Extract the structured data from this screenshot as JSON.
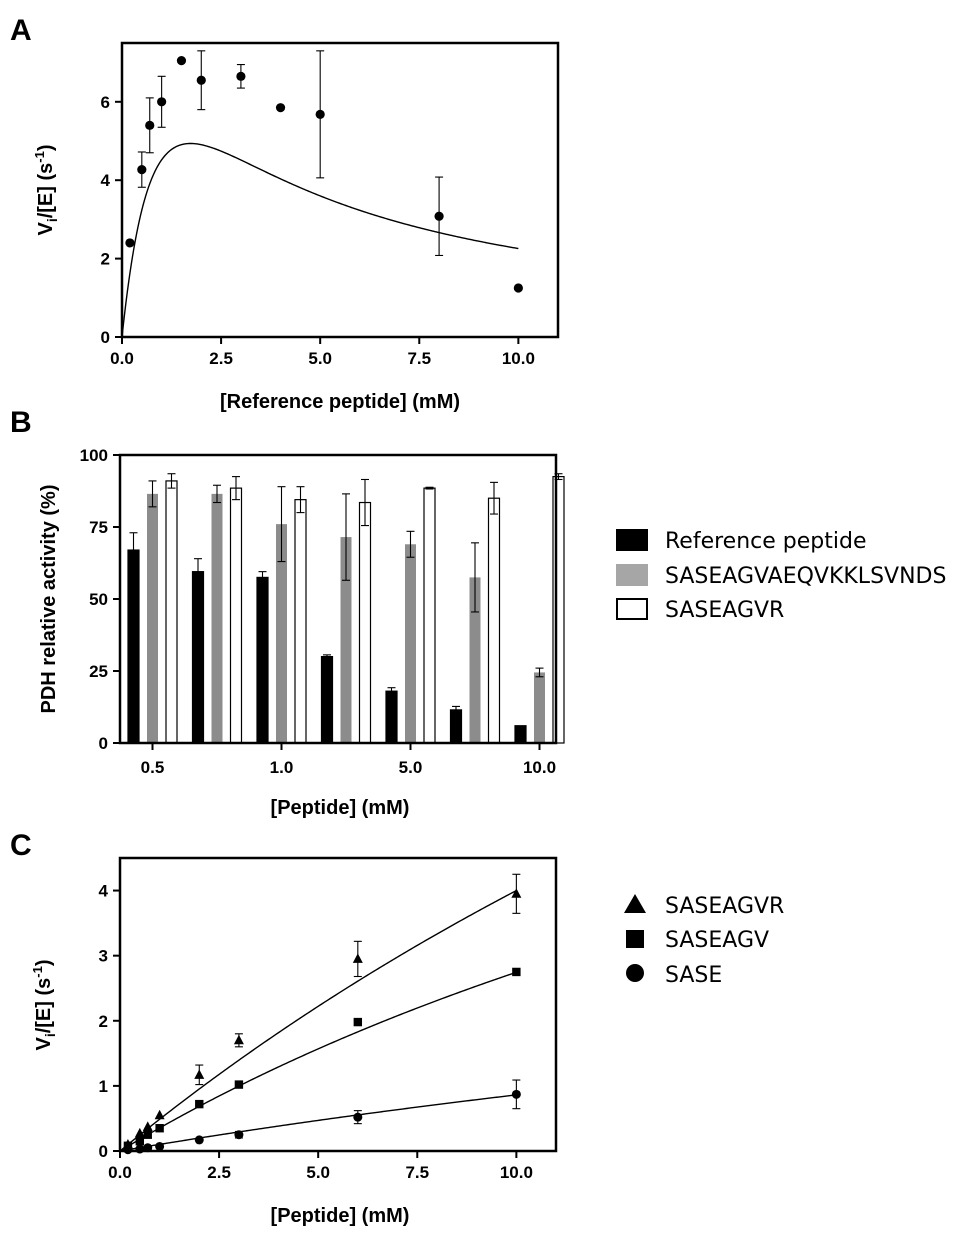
{
  "chart_data": [
    {
      "panel": "A",
      "type": "scatter",
      "xlabel": "[Reference peptide] (mM)",
      "ylabel_main": "V",
      "ylabel_sub": "i",
      "ylabel_mid": "/[E] (s",
      "ylabel_sup": "-1",
      "ylabel_end": ")",
      "xlim": [
        0,
        11
      ],
      "ylim": [
        0,
        7.5
      ],
      "xticks": [
        0.0,
        2.5,
        5.0,
        7.5,
        10.0
      ],
      "xtick_labels": [
        "0.0",
        "2.5",
        "5.0",
        "7.5",
        "10.0"
      ],
      "yticks": [
        0,
        2,
        4,
        6
      ],
      "ytick_labels": [
        "0",
        "2",
        "4",
        "6"
      ],
      "points": [
        {
          "x": 0.2,
          "y": 2.4,
          "err": 0
        },
        {
          "x": 0.5,
          "y": 4.27,
          "err": 0.45
        },
        {
          "x": 0.7,
          "y": 5.4,
          "err": 0.7
        },
        {
          "x": 1.0,
          "y": 6.0,
          "err": 0.65
        },
        {
          "x": 1.5,
          "y": 7.05,
          "err": 0
        },
        {
          "x": 2.0,
          "y": 6.55,
          "err": 0.75
        },
        {
          "x": 3.0,
          "y": 6.65,
          "err": 0.3
        },
        {
          "x": 4.0,
          "y": 5.85,
          "err": 0
        },
        {
          "x": 5.0,
          "y": 5.68,
          "err": 1.62
        },
        {
          "x": 8.0,
          "y": 3.08,
          "err": 1.0
        },
        {
          "x": 10.0,
          "y": 1.25,
          "err": 0
        }
      ],
      "fit": {
        "model": "substrate_inhibition",
        "vmax": 12.36,
        "km": 1.3,
        "ki": 2.3,
        "x_max": 10.0
      }
    },
    {
      "panel": "B",
      "type": "bar",
      "xlabel": "[Peptide] (mM)",
      "ylabel": "PDH relative activity (%)",
      "ylim": [
        0,
        100
      ],
      "yticks": [
        0,
        25,
        50,
        75,
        100
      ],
      "ytick_labels": [
        "0",
        "25",
        "50",
        "75",
        "100"
      ],
      "group_count": 7,
      "xtick_groups": [
        0,
        2,
        4,
        6
      ],
      "xtick_labels": [
        "0.5",
        "1.0",
        "5.0",
        "10.0"
      ],
      "legend": [
        "Reference peptide",
        "SASEAGVAEQVKKLSVNDS",
        "SASEAGVR"
      ],
      "series": [
        {
          "name": "Reference peptide",
          "color": "#000000",
          "values": [
            67,
            59.5,
            57.5,
            30,
            18,
            11.5,
            6
          ],
          "errors": [
            6,
            4.5,
            2,
            0.6,
            1.2,
            1.2,
            0
          ]
        },
        {
          "name": "SASEAGVAEQVKKLSVNDS",
          "color": "#8c8c8c",
          "values": [
            86.5,
            86.5,
            76,
            71.5,
            69,
            57.5,
            24.5
          ],
          "errors": [
            4.5,
            3,
            13,
            15,
            4.5,
            12,
            1.5
          ]
        },
        {
          "name": "SASEAGVR",
          "color": "#ffffff",
          "values": [
            91,
            88.5,
            84.5,
            83.5,
            88.5,
            85,
            92.5
          ],
          "errors": [
            2.5,
            4,
            4.5,
            8,
            0.3,
            5.5,
            1
          ]
        }
      ]
    },
    {
      "panel": "C",
      "type": "scatter",
      "xlabel": "[Peptide] (mM)",
      "ylabel_main": "V",
      "ylabel_sub": "i",
      "ylabel_mid": "/[E] (s",
      "ylabel_sup": "-1",
      "ylabel_end": ")",
      "xlim": [
        0,
        11
      ],
      "ylim": [
        0,
        4.5
      ],
      "xticks": [
        0.0,
        2.5,
        5.0,
        7.5,
        10.0
      ],
      "xtick_labels": [
        "0.0",
        "2.5",
        "5.0",
        "7.5",
        "10.0"
      ],
      "yticks": [
        0,
        1,
        2,
        3,
        4
      ],
      "ytick_labels": [
        "0",
        "1",
        "2",
        "3",
        "4"
      ],
      "legend": [
        "SASEAGVR",
        "SASEAGV",
        "SASE"
      ],
      "series": [
        {
          "name": "SASEAGVR",
          "marker": "triangle",
          "fit": {
            "vmax": 20,
            "km": 40
          },
          "points": [
            {
              "x": 0.2,
              "y": 0.1,
              "err": 0
            },
            {
              "x": 0.5,
              "y": 0.27,
              "err": 0
            },
            {
              "x": 0.7,
              "y": 0.37,
              "err": 0
            },
            {
              "x": 1.0,
              "y": 0.55,
              "err": 0
            },
            {
              "x": 2.0,
              "y": 1.17,
              "err": 0.15
            },
            {
              "x": 3.0,
              "y": 1.7,
              "err": 0.1
            },
            {
              "x": 6.0,
              "y": 2.95,
              "err": 0.27
            },
            {
              "x": 10.0,
              "y": 3.95,
              "err": 0.3
            }
          ]
        },
        {
          "name": "SASEAGV",
          "marker": "square",
          "fit": {
            "vmax": 10.98,
            "km": 30
          },
          "points": [
            {
              "x": 0.2,
              "y": 0.08,
              "err": 0
            },
            {
              "x": 0.5,
              "y": 0.15,
              "err": 0
            },
            {
              "x": 0.7,
              "y": 0.25,
              "err": 0
            },
            {
              "x": 1.0,
              "y": 0.35,
              "err": 0
            },
            {
              "x": 2.0,
              "y": 0.72,
              "err": 0
            },
            {
              "x": 3.0,
              "y": 1.02,
              "err": 0
            },
            {
              "x": 6.0,
              "y": 1.98,
              "err": 0
            },
            {
              "x": 10.0,
              "y": 2.75,
              "err": 0
            }
          ]
        },
        {
          "name": "SASE",
          "marker": "circle",
          "fit": {
            "vmax": 5.17,
            "km": 50
          },
          "points": [
            {
              "x": 0.2,
              "y": 0.02,
              "err": 0
            },
            {
              "x": 0.5,
              "y": 0.03,
              "err": 0
            },
            {
              "x": 0.7,
              "y": 0.05,
              "err": 0
            },
            {
              "x": 1.0,
              "y": 0.07,
              "err": 0
            },
            {
              "x": 2.0,
              "y": 0.17,
              "err": 0
            },
            {
              "x": 3.0,
              "y": 0.25,
              "err": 0.05
            },
            {
              "x": 6.0,
              "y": 0.52,
              "err": 0.1
            },
            {
              "x": 10.0,
              "y": 0.87,
              "err": 0.22
            }
          ]
        }
      ]
    }
  ]
}
